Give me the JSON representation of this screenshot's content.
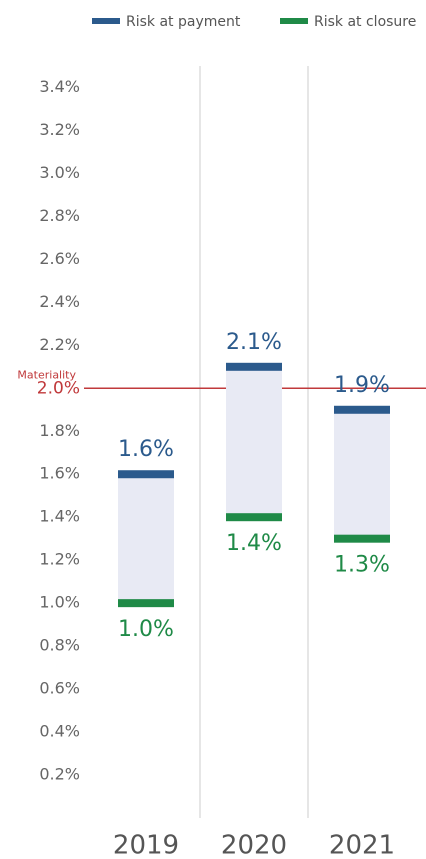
{
  "chart_data": {
    "type": "range-bar",
    "categories": [
      "2019",
      "2020",
      "2021"
    ],
    "series": [
      {
        "name": "Risk at payment",
        "color": "#2b5a8c",
        "values": [
          1.6,
          2.1,
          1.9
        ],
        "value_labels": [
          "1.6%",
          "2.1%",
          "1.9%"
        ]
      },
      {
        "name": "Risk at closure",
        "color": "#1f8a47",
        "values": [
          1.0,
          1.4,
          1.3
        ],
        "value_labels": [
          "1.0%",
          "1.4%",
          "1.3%"
        ]
      }
    ],
    "range_color": "#e8eaf4",
    "ylim": [
      0,
      3.5
    ],
    "yticks": [
      {
        "value": 0.2,
        "label": "0.2%"
      },
      {
        "value": 0.4,
        "label": "0.4%"
      },
      {
        "value": 0.6,
        "label": "0.6%"
      },
      {
        "value": 0.8,
        "label": "0.8%"
      },
      {
        "value": 1.0,
        "label": "1.0%"
      },
      {
        "value": 1.2,
        "label": "1.2%"
      },
      {
        "value": 1.4,
        "label": "1.4%"
      },
      {
        "value": 1.6,
        "label": "1.6%"
      },
      {
        "value": 1.8,
        "label": "1.8%"
      },
      {
        "value": 2.0,
        "label": "2.0%"
      },
      {
        "value": 2.2,
        "label": "2.2%"
      },
      {
        "value": 2.4,
        "label": "2.4%"
      },
      {
        "value": 2.6,
        "label": "2.6%"
      },
      {
        "value": 2.8,
        "label": "2.8%"
      },
      {
        "value": 3.0,
        "label": "3.0%"
      },
      {
        "value": 3.2,
        "label": "3.2%"
      },
      {
        "value": 3.4,
        "label": "3.4%"
      }
    ],
    "reference_line": {
      "value": 2.0,
      "label": "Materiality",
      "color": "#c0393b"
    },
    "legend": "top"
  }
}
